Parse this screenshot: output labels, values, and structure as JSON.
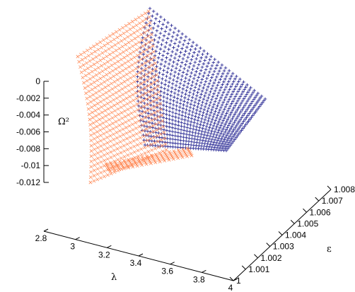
{
  "chart_data": {
    "type": "scatter",
    "dimensions": 3,
    "axes": {
      "x": {
        "label": "λ",
        "range": [
          2.8,
          4
        ],
        "ticks": [
          "2.8",
          "3",
          "3.2",
          "3.4",
          "3.6",
          "3.8",
          "4"
        ]
      },
      "y": {
        "label": "ε",
        "range": [
          1,
          1.008
        ],
        "ticks": [
          "1",
          "1.001",
          "1.002",
          "1.003",
          "1.004",
          "1.005",
          "1.006",
          "1.007",
          "1.008"
        ]
      },
      "z": {
        "label": "Ω²",
        "range": [
          -0.012,
          0
        ],
        "ticks": [
          "0",
          "-0.002",
          "-0.004",
          "-0.006",
          "-0.008",
          "-0.01",
          "-0.012"
        ]
      }
    },
    "series": [
      {
        "marker": "+",
        "color": "#1a1a8c",
        "description_points": [
          {
            "x": 3.0,
            "y": 1.0,
            "z": 0.0
          },
          {
            "x": 3.0,
            "y": 1.008,
            "z": -0.004
          },
          {
            "x": 3.0,
            "y": 1.0,
            "z": -0.008
          },
          {
            "x": 3.0,
            "y": 1.008,
            "z": -0.009
          }
        ]
      },
      {
        "marker": "x",
        "color": "#ff8c5a",
        "description_points": [
          {
            "x": 3.0,
            "y": 1.0,
            "z": 0.0
          },
          {
            "x": 2.8,
            "y": 1.0,
            "z": -0.003
          },
          {
            "x": 2.8,
            "y": 1.0,
            "z": -0.012
          },
          {
            "x": 3.2,
            "y": 1.003,
            "z": -0.008
          }
        ]
      }
    ],
    "grid": false,
    "legend": "none"
  }
}
